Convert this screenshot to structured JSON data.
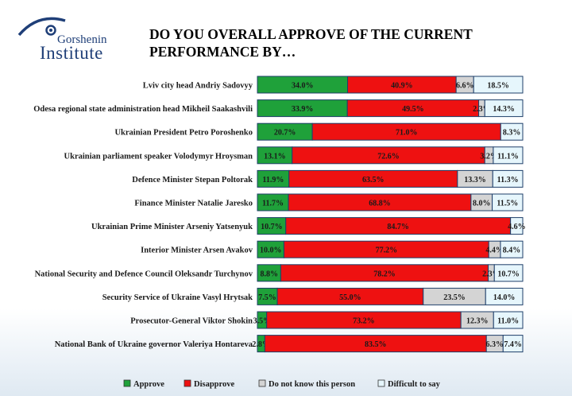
{
  "header": {
    "logo_line1": "Gorshenin",
    "logo_line2": "Institute",
    "title": "DO YOU OVERALL APPROVE OF THE CURRENT PERFORMANCE BY…"
  },
  "colors": {
    "approve": "#1fa13a",
    "disapprove": "#ee1111",
    "do_not_know": "#d4d4d4",
    "difficult": "#e6f6fc",
    "bar_border": "#1f3f6a"
  },
  "chart_data": {
    "type": "bar",
    "orientation": "horizontal",
    "stacked": true,
    "title": "DO YOU OVERALL APPROVE OF THE CURRENT PERFORMANCE BY…",
    "categories": [
      "Lviv city head Andriy Sadovyy",
      "Odesa regional state administration head Mikheil Saakashvili",
      "Ukrainian President Petro Poroshenko",
      "Ukrainian parliament speaker Volodymyr Hroysman",
      "Defence Minister Stepan Poltorak",
      "Finance Minister Natalie Jaresko",
      "Ukrainian Prime Minister Arseniy Yatsenyuk",
      "Interior Minister Arsen Avakov",
      "National Security and Defence Council Oleksandr Turchynov",
      "Security Service of Ukraine Vasyl Hrytsak",
      "Prosecutor-General Viktor Shokin",
      "National Bank of Ukraine governor Valeriya Hontareva"
    ],
    "series": [
      {
        "name": "Approve",
        "values": [
          34.0,
          33.9,
          20.7,
          13.1,
          11.9,
          11.7,
          10.7,
          10.0,
          8.8,
          7.5,
          3.5,
          2.8
        ],
        "labels": [
          "34.0%",
          "33.9%",
          "20.7%",
          "13.1%",
          "11.9%",
          "11.7%",
          "10.7%",
          "10.0%",
          "8.8%",
          "7.5%",
          "3.5%",
          "2.8%"
        ]
      },
      {
        "name": "Disapprove",
        "values": [
          40.9,
          49.5,
          71.0,
          72.6,
          63.5,
          68.8,
          84.7,
          77.2,
          78.2,
          55.0,
          73.2,
          83.5
        ],
        "labels": [
          "40.9%",
          "49.5%",
          "71.0%",
          "72.6%",
          "63.5%",
          "68.8%",
          "84.7%",
          "77.2%",
          "78.2%",
          "55.0%",
          "73.2%",
          "83.5%"
        ]
      },
      {
        "name": "Do not know this person",
        "values": [
          6.6,
          2.3,
          0,
          3.2,
          13.3,
          8.0,
          0,
          4.4,
          2.3,
          23.5,
          12.3,
          6.3
        ],
        "labels": [
          "6.6%",
          "2.3%",
          "",
          "3.2%",
          "13.3%",
          "8.0%",
          "",
          "4.4%",
          "2.3%",
          "23.5%",
          "12.3%",
          "6.3%"
        ]
      },
      {
        "name": "Difficult to say",
        "values": [
          18.5,
          14.3,
          8.3,
          11.1,
          11.3,
          11.5,
          4.6,
          8.4,
          10.7,
          14.0,
          11.0,
          7.4
        ],
        "labels": [
          "18.5%",
          "14.3%",
          "8.3%",
          "11.1%",
          "11.3%",
          "11.5%",
          "4.6%",
          "8.4%",
          "10.7%",
          "14.0%",
          "11.0%",
          "7.4%"
        ]
      }
    ],
    "xlim": [
      0,
      100
    ],
    "legend": "bottom",
    "grid": false
  }
}
